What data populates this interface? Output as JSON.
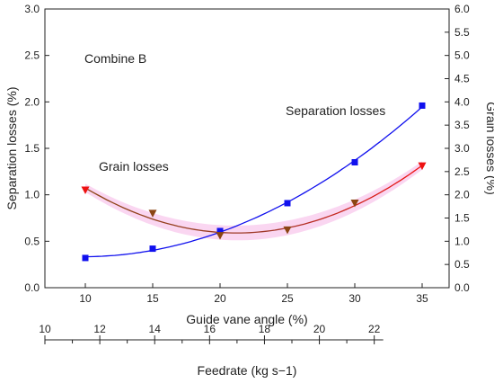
{
  "chart_data": {
    "type": "scatter",
    "annotation": "Combine B",
    "xlabel": "Guide vane angle (%)",
    "x2label": "Feedrate (kg s−1)",
    "ylabel": "Separation losses (%)",
    "y2label": "Grain losses (%)",
    "xlim": [
      7,
      37
    ],
    "ylim": [
      0,
      3.0
    ],
    "y2lim": [
      0,
      6.0
    ],
    "x2lim": [
      10,
      22.6
    ],
    "x_ticks": [
      10,
      15,
      20,
      25,
      30,
      35
    ],
    "y_ticks": [
      "0.0",
      "0.5",
      "1.0",
      "1.5",
      "2.0",
      "2.5",
      "3.0"
    ],
    "y2_ticks": [
      "0.0",
      "0.5",
      "1.0",
      "1.5",
      "2.0",
      "2.5",
      "3.0",
      "3.5",
      "4.0",
      "4.5",
      "5.0",
      "5.5",
      "6.0"
    ],
    "x2_ticks": [
      10,
      12,
      14,
      16,
      18,
      20,
      22
    ],
    "series": [
      {
        "name": "Separation losses",
        "axis": "left",
        "marker": "square",
        "x": [
          10,
          15,
          20,
          25,
          30,
          35
        ],
        "y": [
          0.32,
          0.42,
          0.61,
          0.91,
          1.35,
          1.96
        ]
      },
      {
        "name": "Grain losses",
        "axis": "right",
        "marker": "triangle-down",
        "x": [
          10,
          15,
          20,
          25,
          30,
          35
        ],
        "y": [
          2.1,
          1.6,
          1.12,
          1.24,
          1.82,
          2.62
        ]
      }
    ],
    "colors": {
      "separation": "#1010ee",
      "grain_marker": "#8b4513",
      "grain_end_marker": "#ee1111",
      "grain_fit_start": "#8b4513",
      "grain_fit_end": "#ee1111",
      "grain_band": "#f8c8ec"
    }
  }
}
